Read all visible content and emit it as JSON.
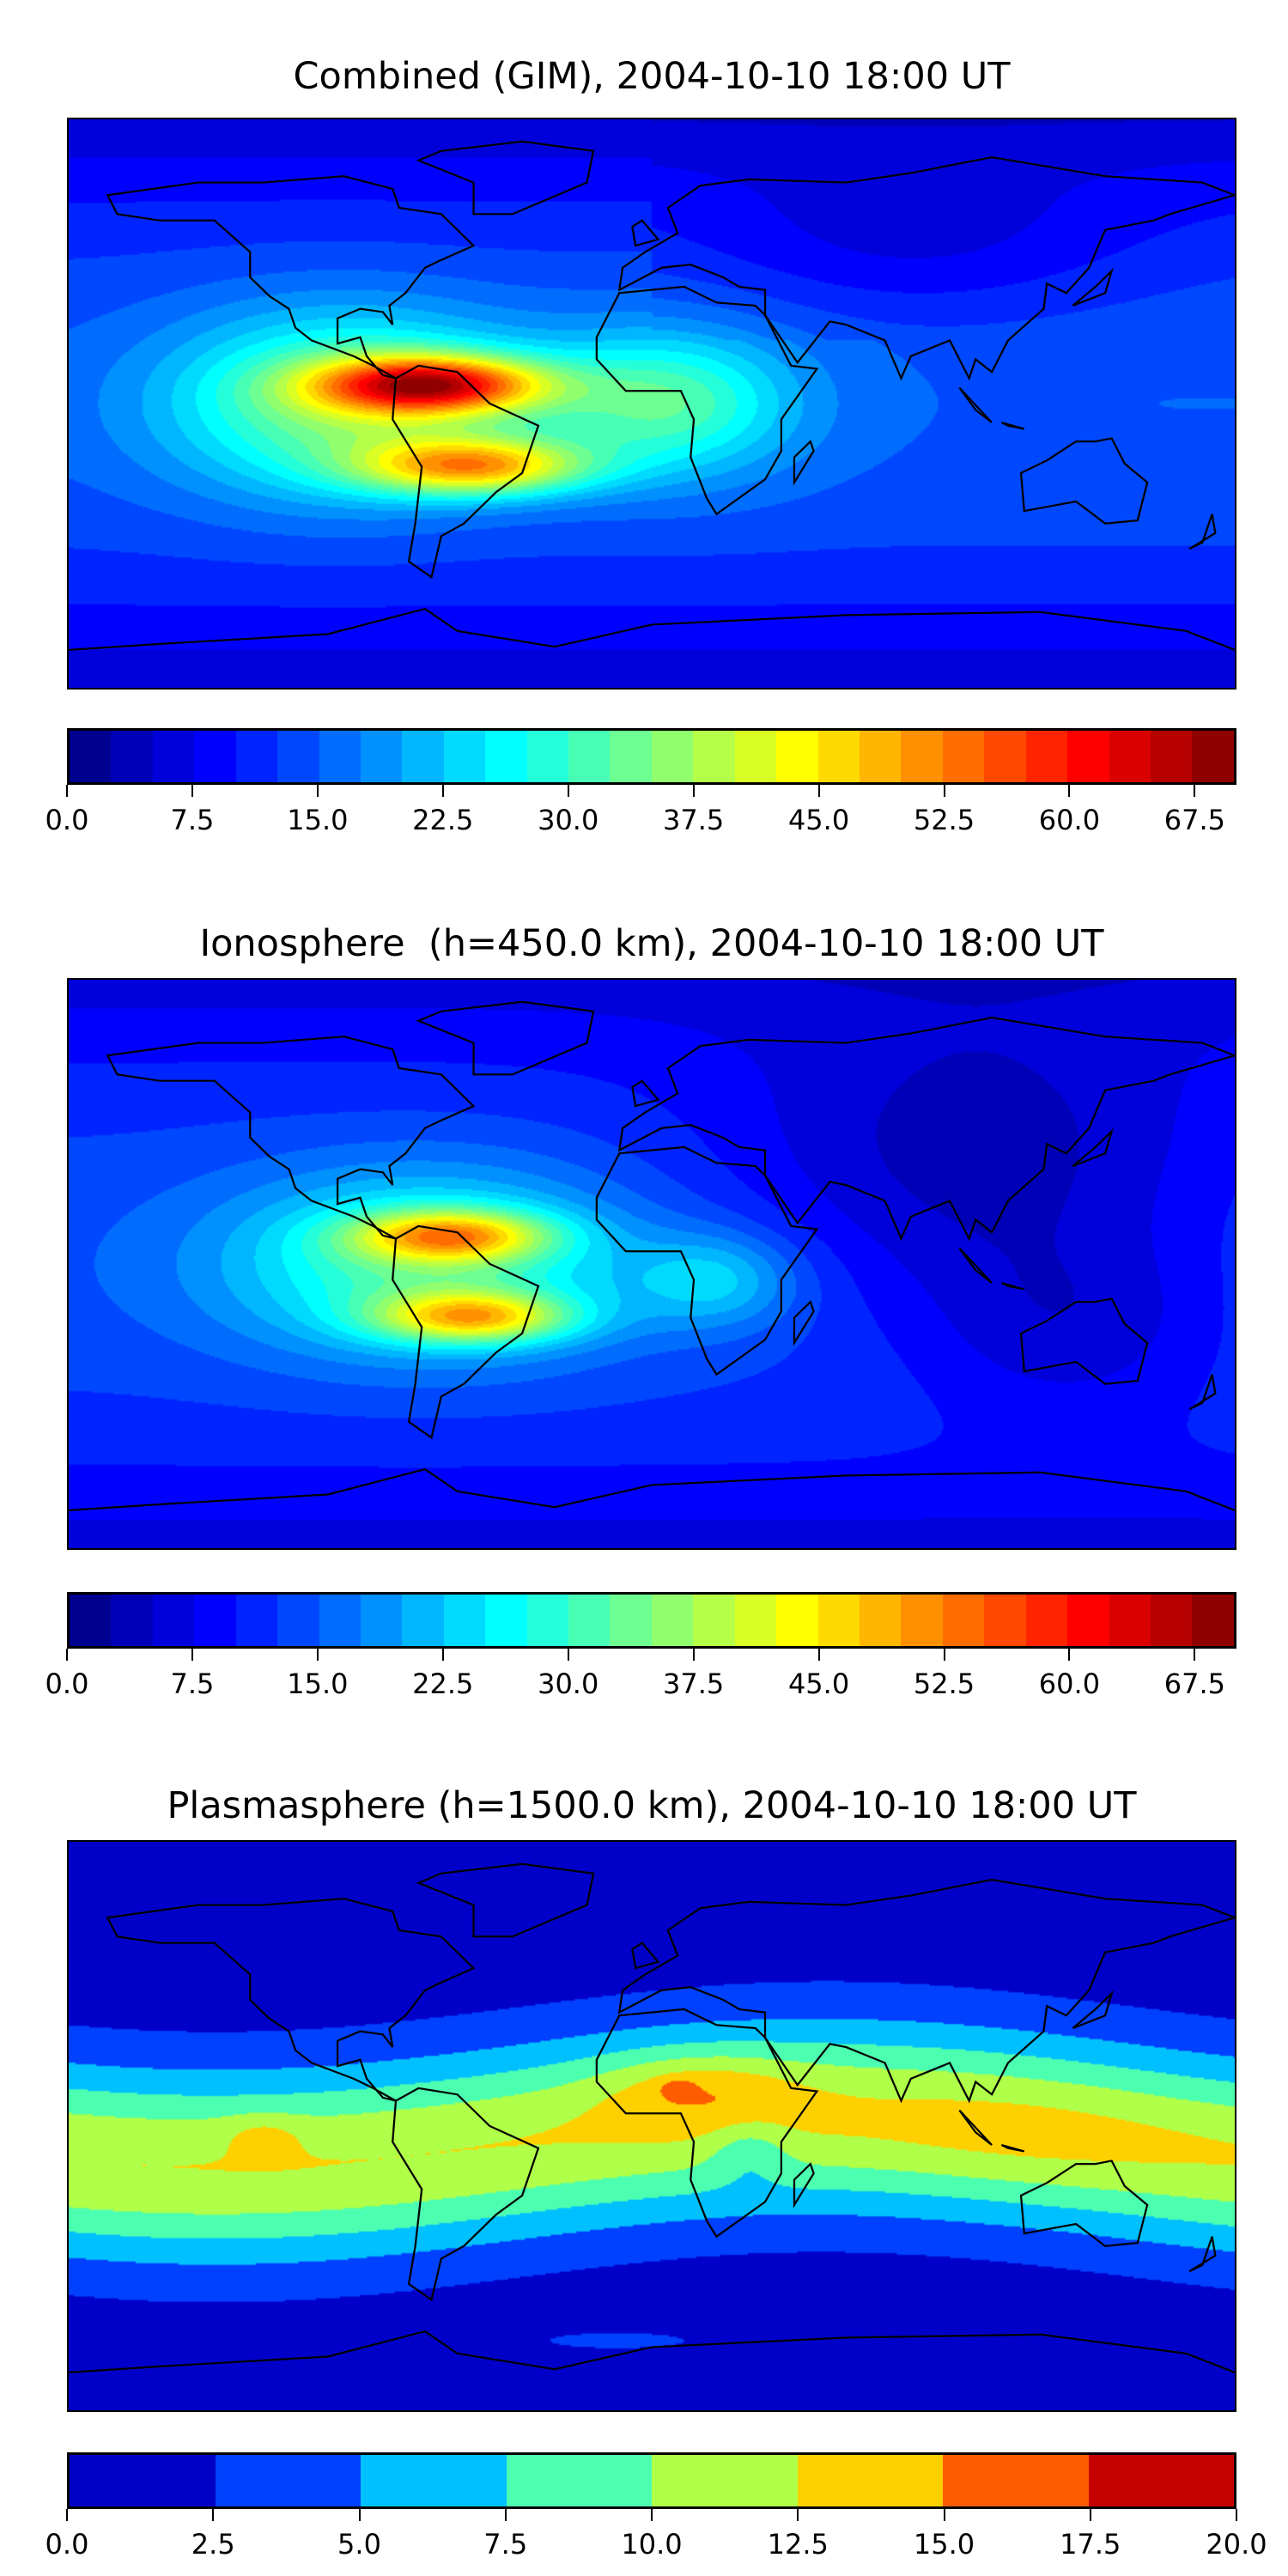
{
  "chart_data": [
    {
      "type": "heatmap",
      "title": "Combined (GIM), 2004-10-10 18:00 UT",
      "projection": "equirectangular world map with coastlines",
      "xlim": [
        -180,
        180
      ],
      "ylim": [
        -90,
        90
      ],
      "colorbar": {
        "min": 0.0,
        "max": 70.0,
        "step": 2.5,
        "colormap": "jet",
        "ticks": [
          "0.0",
          "7.5",
          "15.0",
          "22.5",
          "30.0",
          "37.5",
          "45.0",
          "52.5",
          "60.0",
          "67.5"
        ]
      },
      "features": [
        {
          "name": "equatorial anomaly maximum over northern South America",
          "lon": -65,
          "lat": 5,
          "value": 65
        },
        {
          "name": "southern crest over South America",
          "lon": -55,
          "lat": -20,
          "value": 55
        },
        {
          "name": "background mid-latitudes",
          "value": 12
        },
        {
          "name": "polar minimum",
          "value": 3
        }
      ]
    },
    {
      "type": "heatmap",
      "title": "Ionosphere  (h=450.0 km), 2004-10-10 18:00 UT",
      "projection": "equirectangular world map with coastlines",
      "xlim": [
        -180,
        180
      ],
      "ylim": [
        -90,
        90
      ],
      "colorbar": {
        "min": 0.0,
        "max": 70.0,
        "step": 2.5,
        "colormap": "jet",
        "ticks": [
          "0.0",
          "7.5",
          "15.0",
          "22.5",
          "30.0",
          "37.5",
          "45.0",
          "52.5",
          "60.0",
          "67.5"
        ]
      },
      "features": [
        {
          "name": "northern crest maximum over South America",
          "lon": -62,
          "lat": 8,
          "value": 52
        },
        {
          "name": "southern crest",
          "lon": -55,
          "lat": -18,
          "value": 50
        },
        {
          "name": "night-side Asia minimum",
          "value": 3
        }
      ]
    },
    {
      "type": "heatmap",
      "title": "Plasmasphere (h=1500.0 km), 2004-10-10 18:00 UT",
      "projection": "equirectangular world map with coastlines",
      "xlim": [
        -180,
        180
      ],
      "ylim": [
        -90,
        90
      ],
      "colorbar": {
        "min": 0.0,
        "max": 20.0,
        "step": 2.5,
        "colors": [
          "#0000c8",
          "#0040ff",
          "#00c0ff",
          "#4cffb0",
          "#b0ff48",
          "#ffd000",
          "#ff5c00",
          "#c40000"
        ],
        "ticks": [
          "0.0",
          "2.5",
          "5.0",
          "7.5",
          "10.0",
          "12.5",
          "15.0",
          "17.5",
          "20.0"
        ]
      },
      "features": [
        {
          "name": "maximum over West Africa",
          "lon": 8,
          "lat": 12,
          "value": 16
        },
        {
          "name": "low-latitude band",
          "value": 11
        },
        {
          "name": "high-latitude minimum",
          "value": 1
        }
      ]
    }
  ]
}
